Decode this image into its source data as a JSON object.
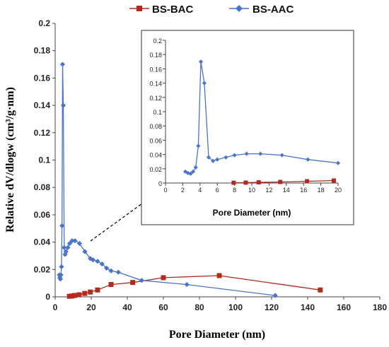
{
  "colors": {
    "bac": "#b22a1e",
    "aac": "#4a74c9",
    "axis": "#444444"
  },
  "chart_data": [
    {
      "type": "line",
      "role": "main",
      "xlabel": "Pore Diameter (nm)",
      "ylabel": "Relative dV/dlogw (cm³/g·nm)",
      "xlim": [
        0,
        180
      ],
      "ylim": [
        0,
        0.2
      ],
      "xticks": [
        "0",
        "20",
        "40",
        "60",
        "80",
        "100",
        "120",
        "140",
        "160",
        "180"
      ],
      "yticks": [
        "0",
        "0.02",
        "0.04",
        "0.06",
        "0.08",
        "0.1",
        "0.12",
        "0.14",
        "0.16",
        "0.18",
        "0.2"
      ],
      "legend_position": "top",
      "series": [
        {
          "name": "BS-BAC",
          "color": "#b22a1e",
          "marker": "square",
          "x": [
            7.9,
            9.3,
            10.8,
            13.3,
            16.4,
            19.5,
            23.5,
            31.0,
            43.0,
            60.0,
            91.0,
            147.0
          ],
          "y": [
            0.0004,
            0.0006,
            0.001,
            0.0015,
            0.0025,
            0.0035,
            0.005,
            0.009,
            0.0105,
            0.014,
            0.0155,
            0.005
          ]
        },
        {
          "name": "BS-AAC",
          "color": "#4a74c9",
          "marker": "diamond",
          "x": [
            2.3,
            2.6,
            2.9,
            3.2,
            3.5,
            3.8,
            4.1,
            4.5,
            5.0,
            5.5,
            6.0,
            7.0,
            8.0,
            9.4,
            11.0,
            13.5,
            16.5,
            19.5,
            21.0,
            23.5,
            26.0,
            28.5,
            31.0,
            35.0,
            48.0,
            73.0,
            122.0
          ],
          "y": [
            0.016,
            0.014,
            0.013,
            0.016,
            0.022,
            0.052,
            0.17,
            0.14,
            0.036,
            0.031,
            0.033,
            0.036,
            0.039,
            0.041,
            0.041,
            0.039,
            0.033,
            0.028,
            0.027,
            0.026,
            0.024,
            0.021,
            0.019,
            0.018,
            0.012,
            0.009,
            0.001
          ]
        }
      ]
    },
    {
      "type": "line",
      "role": "inset",
      "xlabel": "Pore Diameter (nm)",
      "ylabel": "",
      "xlim": [
        0,
        20
      ],
      "ylim": [
        0,
        0.2
      ],
      "xticks": [
        "0",
        "2",
        "4",
        "6",
        "8",
        "10",
        "12",
        "14",
        "16",
        "18",
        "20"
      ],
      "yticks": [
        "0",
        "0.02",
        "0.04",
        "0.06",
        "0.08",
        "0.1",
        "0.12",
        "0.14",
        "0.16",
        "0.18",
        "0.2"
      ],
      "series": [
        {
          "name": "BS-BAC",
          "x": [
            7.9,
            9.3,
            10.8,
            13.3,
            16.4,
            19.5
          ],
          "y": [
            0.0004,
            0.0006,
            0.001,
            0.0015,
            0.0025,
            0.0035
          ]
        },
        {
          "name": "BS-AAC",
          "x": [
            2.3,
            2.6,
            2.9,
            3.2,
            3.5,
            3.8,
            4.1,
            4.5,
            5.0,
            5.5,
            6.0,
            7.0,
            8.0,
            9.4,
            11.0,
            13.5,
            16.5,
            20.0
          ],
          "y": [
            0.016,
            0.014,
            0.013,
            0.016,
            0.022,
            0.052,
            0.17,
            0.14,
            0.036,
            0.031,
            0.033,
            0.036,
            0.039,
            0.041,
            0.041,
            0.039,
            0.033,
            0.028
          ]
        }
      ]
    }
  ]
}
